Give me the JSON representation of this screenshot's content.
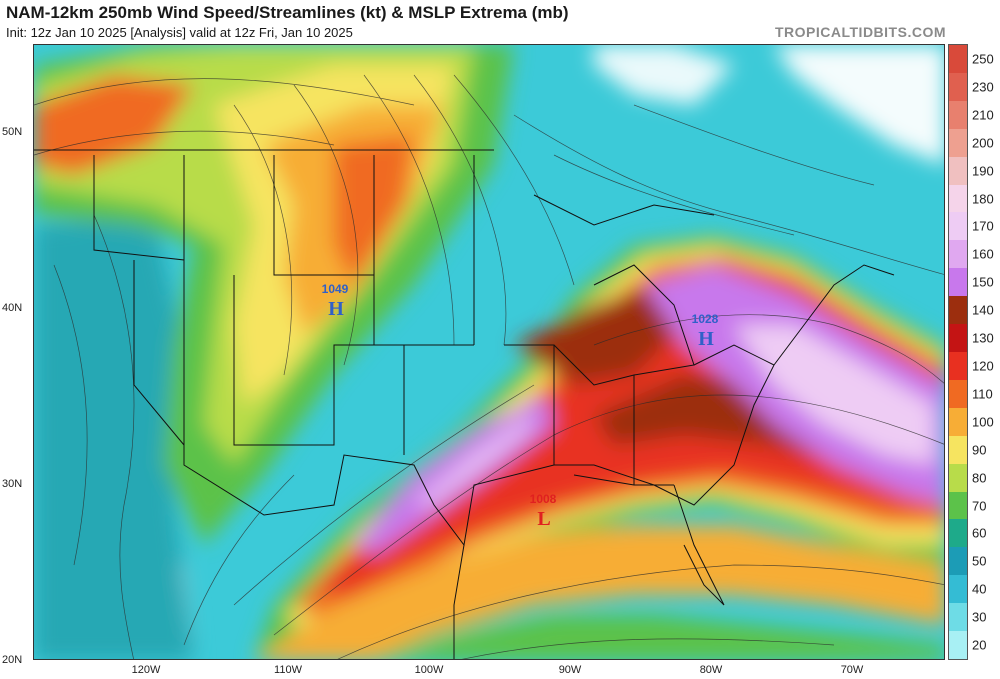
{
  "header": {
    "title": "NAM-12km 250mb Wind Speed/Streamlines (kt) & MSLP Extrema (mb)",
    "subtitle": "Init: 12z Jan 10 2025   [Analysis]   valid at 12z Fri, Jan 10 2025",
    "credit": "TROPICALTIDBITS.COM"
  },
  "map": {
    "lat_labels": [
      "50N",
      "40N",
      "30N",
      "20N"
    ],
    "lon_labels": [
      "120W",
      "110W",
      "100W",
      "90W",
      "80W",
      "70W"
    ],
    "pressure_centers": [
      {
        "letter": "H",
        "value": "1049",
        "color": "#3060c8"
      },
      {
        "letter": "H",
        "value": "1028",
        "color": "#3060c8"
      },
      {
        "letter": "L",
        "value": "1008",
        "color": "#e02020"
      }
    ]
  },
  "colorbar": {
    "labels": [
      "250",
      "230",
      "210",
      "200",
      "190",
      "180",
      "170",
      "160",
      "150",
      "140",
      "130",
      "120",
      "110",
      "100",
      "90",
      "80",
      "70",
      "60",
      "50",
      "40",
      "30",
      "20"
    ],
    "colors": [
      "#d94a3a",
      "#e0604f",
      "#e8806e",
      "#eea090",
      "#f0c0c0",
      "#f5d4ea",
      "#eeccf4",
      "#e0a8f0",
      "#c878ec",
      "#9c2e0e",
      "#c41414",
      "#e83020",
      "#f06a22",
      "#f7ad36",
      "#f6e460",
      "#b8dc4a",
      "#5cc24a",
      "#1eaa8a",
      "#1c9cb6",
      "#34bcd4",
      "#6edce6",
      "#a8f0f4"
    ]
  }
}
